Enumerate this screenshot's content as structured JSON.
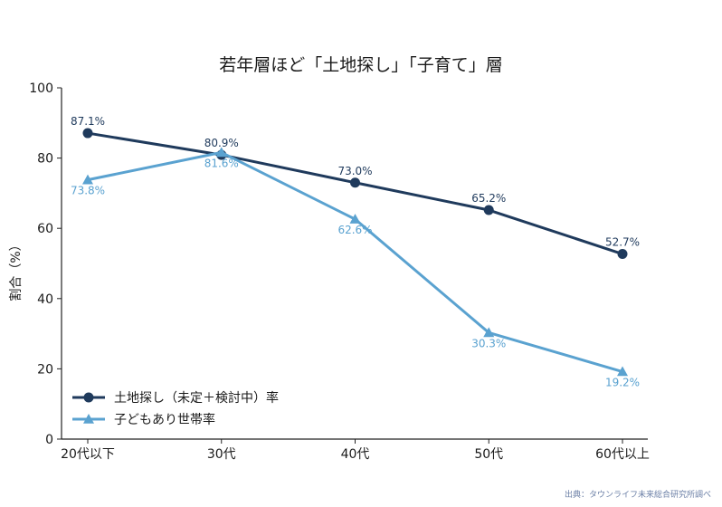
{
  "chart_data": {
    "type": "line",
    "title": "若年層ほど「土地探し」「子育て」層",
    "ylabel": "割合（%）",
    "xlabel": "",
    "ylim": [
      0,
      100
    ],
    "yticks": [
      0,
      20,
      40,
      60,
      80,
      100
    ],
    "categories": [
      "20代以下",
      "30代",
      "40代",
      "50代",
      "60代以上"
    ],
    "series": [
      {
        "name": "土地探し（未定＋検討中）率",
        "values": [
          87.1,
          80.9,
          73.0,
          65.2,
          52.7
        ],
        "labels": [
          "87.1%",
          "80.9%",
          "73.0%",
          "65.2%",
          "52.7%"
        ],
        "color": "#1f3a5c",
        "marker": "circle"
      },
      {
        "name": "子どもあり世帯率",
        "values": [
          73.8,
          81.6,
          62.6,
          30.3,
          19.2
        ],
        "labels": [
          "73.8%",
          "81.6%",
          "62.6%",
          "30.3%",
          "19.2%"
        ],
        "color": "#5aa2d0",
        "marker": "triangle"
      }
    ],
    "legend_position": "bottom-left",
    "grid": false
  },
  "source_note": "出典：タウンライフ未来総合研究所調べ"
}
